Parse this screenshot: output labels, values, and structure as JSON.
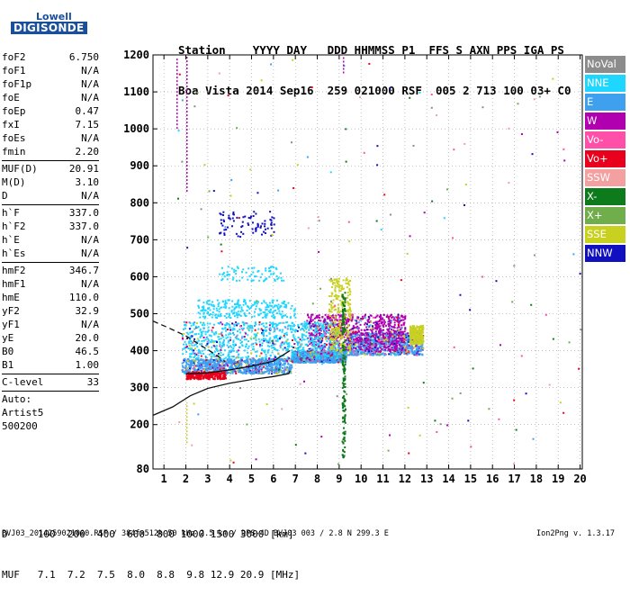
{
  "logo": {
    "top": "Lowell",
    "bottom": "DIGISONDE"
  },
  "header": {
    "labels": "Station    YYYY DAY   DDD HHMMSS P1  FFS S AXN PPS IGA PS",
    "values": "Boa Vista 2014 Sep16  259 021000 RSF  005 2 713 100 03+ C0"
  },
  "params": [
    {
      "name": "foF2",
      "value": "6.750"
    },
    {
      "name": "foF1",
      "value": "N/A"
    },
    {
      "name": "foF1p",
      "value": "N/A"
    },
    {
      "name": "foE",
      "value": "N/A"
    },
    {
      "name": "foEp",
      "value": "0.47"
    },
    {
      "name": "fxI",
      "value": "7.15"
    },
    {
      "name": "foEs",
      "value": "N/A"
    },
    {
      "name": "fmin",
      "value": "2.20"
    },
    {
      "sep": true
    },
    {
      "name": "MUF(D)",
      "value": "20.91"
    },
    {
      "name": "M(D)",
      "value": "3.10"
    },
    {
      "name": "D",
      "value": "N/A"
    },
    {
      "sep": true
    },
    {
      "name": "h`F",
      "value": "337.0"
    },
    {
      "name": "h`F2",
      "value": "337.0"
    },
    {
      "name": "h`E",
      "value": "N/A"
    },
    {
      "name": "h`Es",
      "value": "N/A"
    },
    {
      "sep": true
    },
    {
      "name": "hmF2",
      "value": "346.7"
    },
    {
      "name": "hmF1",
      "value": "N/A"
    },
    {
      "name": "hmE",
      "value": "110.0"
    },
    {
      "name": "yF2",
      "value": "32.9"
    },
    {
      "name": "yF1",
      "value": "N/A"
    },
    {
      "name": "yE",
      "value": "20.0"
    },
    {
      "name": "B0",
      "value": "46.5"
    },
    {
      "name": "B1",
      "value": "1.00"
    },
    {
      "sep": true
    },
    {
      "name": "C-level",
      "value": "33"
    },
    {
      "sep": true
    },
    {
      "name": "Auto:",
      "value": ""
    },
    {
      "name": "Artist5",
      "value": ""
    },
    {
      "name": "500200",
      "value": ""
    }
  ],
  "legend": [
    {
      "label": "NoVal",
      "color": "#8c8c8c"
    },
    {
      "label": "NNE",
      "color": "#1fd6ff"
    },
    {
      "label": "E",
      "color": "#3fa0f0"
    },
    {
      "label": "W",
      "color": "#b000b0"
    },
    {
      "label": "Vo-",
      "color": "#ff4fa8"
    },
    {
      "label": "Vo+",
      "color": "#e8001c"
    },
    {
      "label": "SSW",
      "color": "#f4a0a0"
    },
    {
      "label": "X-",
      "color": "#0d7a1c"
    },
    {
      "label": "X+",
      "color": "#6fae4a"
    },
    {
      "label": "SSE",
      "color": "#c8d020"
    },
    {
      "label": "NNW",
      "color": "#1010c0"
    }
  ],
  "distance_muf": {
    "d_line": "D     100  200  400  600  800 1000 1500 3000 [km]",
    "muf_line": "MUF   7.1  7.2  7.5  8.0  8.8  9.8 12.9 20.9 [MHz]"
  },
  "footer": {
    "left": "BVJ03_2014259021000.RSF / 384fx512h 50 kHz 2.5 km / DPS-4D BVJ03 003 / 2.8 N 299.3 E",
    "right": "Ion2Png v. 1.3.17"
  },
  "chart_data": {
    "type": "scatter",
    "xlim": [
      0.5,
      20.1
    ],
    "ylim": [
      80,
      1200
    ],
    "x_ticks": [
      1,
      2,
      3,
      4,
      5,
      6,
      7,
      8,
      9,
      10,
      11,
      12,
      13,
      14,
      15,
      16,
      17,
      18,
      19,
      20
    ],
    "y_ticks": [
      80,
      200,
      300,
      400,
      500,
      600,
      700,
      800,
      900,
      1000,
      1100,
      1200
    ],
    "grid": true,
    "legend_position": "right",
    "clusters": [
      {
        "series": "E",
        "x_range": [
          1.8,
          6.8
        ],
        "y_range": [
          340,
          380
        ],
        "density": "high"
      },
      {
        "series": "E",
        "x_range": [
          6.8,
          9.3
        ],
        "y_range": [
          370,
          400
        ],
        "density": "high"
      },
      {
        "series": "E",
        "x_range": [
          9.3,
          12.8
        ],
        "y_range": [
          390,
          450
        ],
        "density": "high"
      },
      {
        "series": "W",
        "x_range": [
          7.5,
          12
        ],
        "y_range": [
          400,
          500
        ],
        "density": "high"
      },
      {
        "series": "NNE",
        "x_range": [
          1.8,
          9.0
        ],
        "y_range": [
          380,
          480
        ],
        "density": "high"
      },
      {
        "series": "NNE",
        "x_range": [
          2.5,
          7.0
        ],
        "y_range": [
          490,
          540
        ],
        "density": "medium"
      },
      {
        "series": "NNE",
        "x_range": [
          3.5,
          6.5
        ],
        "y_range": [
          590,
          630
        ],
        "density": "low"
      },
      {
        "series": "NNW",
        "x_range": [
          3.5,
          6.0
        ],
        "y_range": [
          710,
          780
        ],
        "density": "low"
      },
      {
        "series": "Vo+",
        "x_range": [
          2.0,
          3.8
        ],
        "y_range": [
          325,
          345
        ],
        "density": "medium"
      },
      {
        "series": "SSE",
        "x_range": [
          8.5,
          9.5
        ],
        "y_range": [
          400,
          600
        ],
        "density": "medium"
      },
      {
        "series": "SSE",
        "x_range": [
          12.2,
          12.8
        ],
        "y_range": [
          420,
          470
        ],
        "density": "medium"
      },
      {
        "series": "X-",
        "x_range": [
          9.1,
          9.25
        ],
        "y_range": [
          100,
          560
        ],
        "density": "vertical-line"
      }
    ],
    "curves": [
      {
        "name": "true-height profile",
        "style": "solid",
        "points": [
          [
            0.5,
            225
          ],
          [
            1.4,
            248
          ],
          [
            2.2,
            278
          ],
          [
            3.0,
            298
          ],
          [
            4.0,
            312
          ],
          [
            5.0,
            322
          ],
          [
            6.0,
            330
          ],
          [
            6.7,
            338
          ],
          [
            6.75,
            346
          ]
        ]
      },
      {
        "name": "virtual height trace",
        "style": "solid",
        "points": [
          [
            2.0,
            337
          ],
          [
            3.0,
            340
          ],
          [
            4.0,
            348
          ],
          [
            5.0,
            358
          ],
          [
            6.0,
            372
          ],
          [
            6.75,
            400
          ]
        ]
      },
      {
        "name": "model trace",
        "style": "dashed",
        "points": [
          [
            0.5,
            480
          ],
          [
            1.2,
            462
          ],
          [
            2.0,
            440
          ],
          [
            2.8,
            410
          ],
          [
            3.4,
            388
          ],
          [
            3.8,
            370
          ]
        ]
      }
    ]
  }
}
